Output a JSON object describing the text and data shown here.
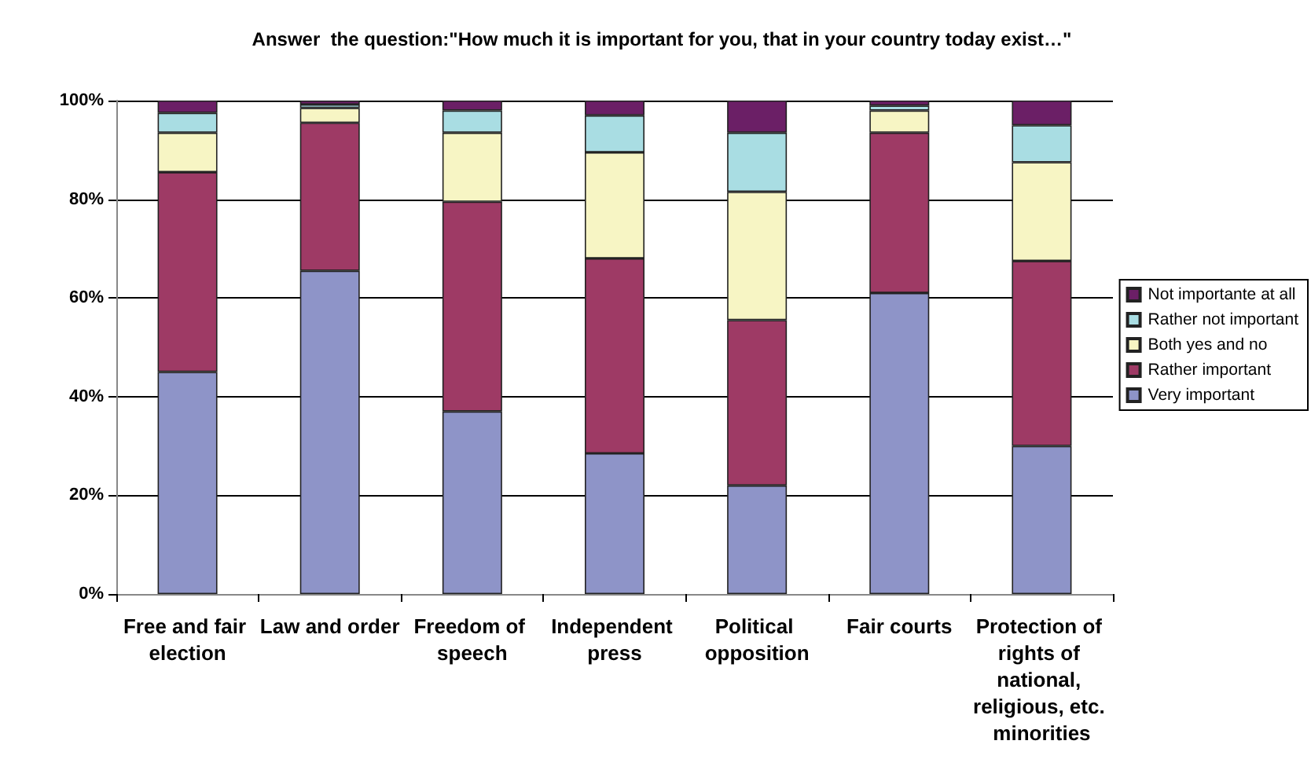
{
  "chart_data": {
    "type": "bar",
    "stacked": true,
    "title": "Answer  the question:\"How much it is important for you, that in your country today exist…\"",
    "categories": [
      "Free and fair election",
      "Law and order",
      "Freedom of speech",
      "Independent press",
      "Political opposition",
      "Fair courts",
      "Protection of rights of national, religious, etc. minorities"
    ],
    "series": [
      {
        "name": "Very important",
        "color": "#8e94c8",
        "values": [
          45,
          65.5,
          37,
          28.5,
          22,
          61,
          30
        ]
      },
      {
        "name": "Rather important",
        "color": "#9e3a65",
        "values": [
          40.5,
          30,
          42.5,
          39.5,
          33.5,
          32.5,
          37.5
        ]
      },
      {
        "name": "Both yes and no",
        "color": "#f7f5c4",
        "values": [
          8,
          3,
          14,
          21.5,
          26,
          4.5,
          20
        ]
      },
      {
        "name": "Rather not important",
        "color": "#a9dde3",
        "values": [
          4,
          0.7,
          4.5,
          7.5,
          12,
          1,
          7.5
        ]
      },
      {
        "name": "Not importante at all",
        "color": "#6b1f66",
        "values": [
          2.5,
          0.8,
          2,
          3,
          6.5,
          1,
          5
        ]
      }
    ],
    "ylim": [
      0,
      100
    ],
    "yticks": [
      {
        "value": 0,
        "label": "0%"
      },
      {
        "value": 20,
        "label": "20%"
      },
      {
        "value": 40,
        "label": "40%"
      },
      {
        "value": 60,
        "label": "60%"
      },
      {
        "value": 80,
        "label": "80%"
      },
      {
        "value": 100,
        "label": "100%"
      }
    ],
    "grid": "y",
    "legend": "right"
  }
}
